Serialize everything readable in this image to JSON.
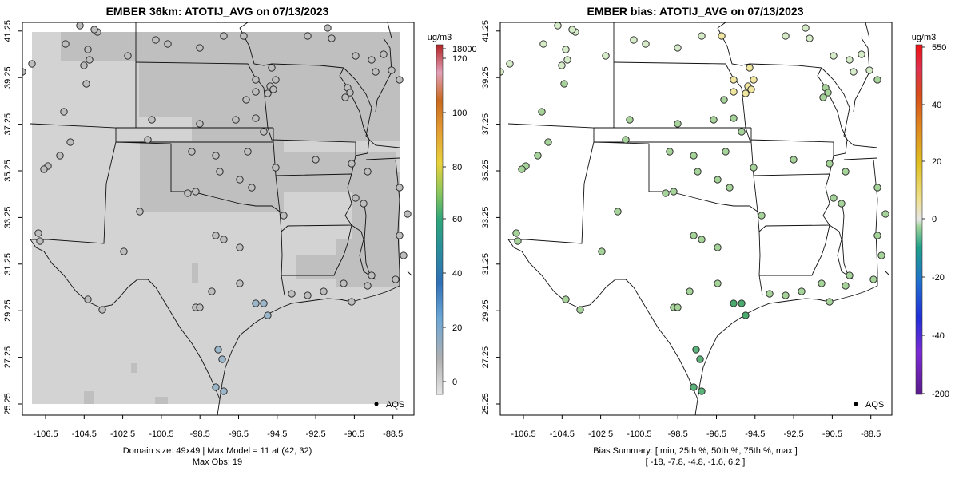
{
  "left_panel": {
    "title": "EMBER 36km: ATOTIJ_AVG on 07/13/2023",
    "colorbar_unit": "ug/m3",
    "colorbar_labels": [
      "18000",
      "120",
      "100",
      "80",
      "60",
      "40",
      "20",
      "0"
    ],
    "legend_label": "AQS",
    "caption_line1": "Domain size: 49x49 | Max Model = 11 at (42, 32)",
    "caption_line2": "Max Obs: 19",
    "colors": {
      "background": "#d3d3d3",
      "cells": "#bdbdbd",
      "points": "#bdbdbd"
    }
  },
  "right_panel": {
    "title": "EMBER bias: ATOTIJ_AVG on 07/13/2023",
    "colorbar_unit": "ug/m3",
    "colorbar_labels": [
      "550",
      "40",
      "20",
      "0",
      "-20",
      "-40",
      "-200"
    ],
    "legend_label": "AQS",
    "caption_line1": "Bias Summary: [ min, 25th %, 50th %, 75th %, max ]",
    "caption_line2": "[ -18,   -7.8,   -4.8,   -1.6,   6.2 ]",
    "colors": {
      "points": "#a6d39a",
      "points_strong": "#5bb37a",
      "points_positive": "#f0e6a0"
    }
  },
  "chart_data": {
    "type": "map",
    "x_ticks": [
      "-106.5",
      "-104.5",
      "-102.5",
      "-100.5",
      "-98.5",
      "-96.5",
      "-94.5",
      "-92.5",
      "-90.5",
      "-88.5"
    ],
    "y_ticks": [
      "25.25",
      "27.25",
      "29.25",
      "31.25",
      "33.25",
      "35.25",
      "37.25",
      "39.25",
      "41.25"
    ],
    "xlim": [
      -107.3,
      -87.9
    ],
    "ylim": [
      25.0,
      41.6
    ],
    "bias_summary": {
      "min": -18,
      "p25": -7.8,
      "p50": -4.8,
      "p75": -1.6,
      "max": 6.2
    },
    "domain_size": "49x49",
    "max_model": 11,
    "max_model_cell": [
      42,
      32
    ],
    "max_obs": 19
  }
}
